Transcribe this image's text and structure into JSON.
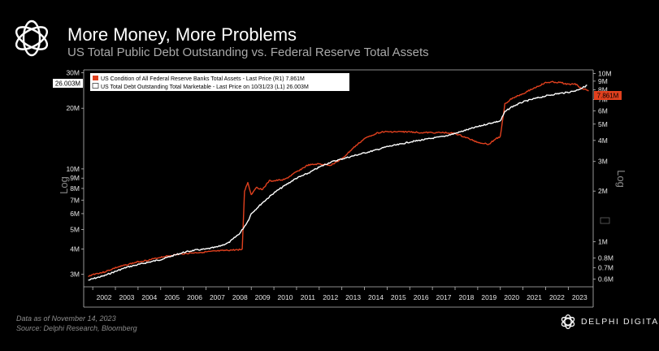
{
  "header": {
    "title": "More Money, More Problems",
    "subtitle": "US Total Public Debt Outstanding vs. Federal Reserve Total Assets"
  },
  "footer": {
    "data_as_of": "Data as of November 14, 2023",
    "source": "Source: Delphi Research, Bloomberg"
  },
  "brand": {
    "name": "DELPHI DIGITAL",
    "icon": "delphi-digital-logo-icon"
  },
  "colors": {
    "background": "#000000",
    "fed_series": "#e0401e",
    "debt_series": "#ffffff",
    "legend_bg": "#ffffff"
  },
  "chart_data": {
    "type": "line",
    "title": "",
    "xlabel": "",
    "ylabel_left": "Log",
    "ylabel_right": "Log",
    "log_scale": true,
    "grid": false,
    "legend_position": "top-left",
    "x_ticks": [
      "2002",
      "2003",
      "2004",
      "2005",
      "2006",
      "2007",
      "2008",
      "2009",
      "2010",
      "2011",
      "2012",
      "2013",
      "2014",
      "2015",
      "2016",
      "2017",
      "2018",
      "2019",
      "2020",
      "2021",
      "2022",
      "2023"
    ],
    "x_range": [
      2001.6,
      2024.1
    ],
    "y_left": {
      "range": [
        2.6,
        31
      ],
      "ticks": [
        "30M",
        "20M",
        "10M",
        "9M",
        "8M",
        "7M",
        "6M",
        "5M",
        "4M",
        "3M"
      ],
      "tick_values": [
        30,
        20,
        10,
        9,
        8,
        7,
        6,
        5,
        4,
        3
      ]
    },
    "y_right": {
      "range": [
        0.54,
        10.5
      ],
      "ticks": [
        "10M",
        "9M",
        "8M",
        "7M",
        "6M",
        "5M",
        "4M",
        "3M",
        "2M",
        "1M",
        "0.8M",
        "0.7M",
        "0.6M"
      ],
      "tick_values": [
        10,
        9,
        8,
        7,
        6,
        5,
        4,
        3,
        2,
        1,
        0.8,
        0.7,
        0.6
      ]
    },
    "last_price_tags": {
      "left": "26.003M",
      "right": "7.861M"
    },
    "series": [
      {
        "name": "US Condition of All Federal Reserve Banks Total Assets - Last Price (R1)  7.861M",
        "axis": "right",
        "color": "#e0401e",
        "x": [
          2001.8,
          2002.0,
          2002.5,
          2003.0,
          2003.5,
          2004.0,
          2004.5,
          2005.0,
          2005.5,
          2006.0,
          2006.5,
          2007.0,
          2007.5,
          2008.0,
          2008.6,
          2008.7,
          2008.85,
          2009.0,
          2009.2,
          2009.5,
          2009.8,
          2010.0,
          2010.5,
          2011.0,
          2011.5,
          2012.0,
          2012.5,
          2013.0,
          2013.5,
          2014.0,
          2014.5,
          2014.8,
          2015.5,
          2016.0,
          2016.5,
          2017.0,
          2017.5,
          2018.0,
          2018.5,
          2019.0,
          2019.5,
          2019.8,
          2020.0,
          2020.2,
          2020.5,
          2021.0,
          2021.5,
          2022.0,
          2022.3,
          2022.7,
          2023.0,
          2023.3,
          2023.5,
          2023.9
        ],
        "values": [
          0.62,
          0.64,
          0.66,
          0.7,
          0.73,
          0.76,
          0.78,
          0.81,
          0.83,
          0.85,
          0.86,
          0.87,
          0.88,
          0.89,
          0.9,
          2.0,
          2.25,
          1.9,
          2.1,
          2.05,
          2.3,
          2.3,
          2.35,
          2.6,
          2.85,
          2.9,
          2.85,
          3.1,
          3.6,
          4.1,
          4.4,
          4.5,
          4.5,
          4.5,
          4.45,
          4.45,
          4.45,
          4.4,
          4.15,
          3.9,
          3.8,
          4.1,
          4.2,
          6.6,
          7.1,
          7.6,
          8.2,
          8.8,
          8.9,
          8.8,
          8.6,
          8.7,
          8.3,
          7.86
        ]
      },
      {
        "name": "US Total Debt Outstanding Total Marketable - Last Price on 10/31/23 (L1)  26.003M",
        "axis": "left",
        "color": "#ffffff",
        "x": [
          2001.8,
          2002.0,
          2002.5,
          2003.0,
          2003.5,
          2004.0,
          2004.5,
          2005.0,
          2005.5,
          2006.0,
          2006.5,
          2007.0,
          2007.5,
          2008.0,
          2008.5,
          2008.85,
          2009.0,
          2009.5,
          2010.0,
          2010.5,
          2011.0,
          2011.5,
          2012.0,
          2012.5,
          2013.0,
          2013.5,
          2014.0,
          2014.5,
          2015.0,
          2015.5,
          2016.0,
          2016.5,
          2017.0,
          2017.5,
          2018.0,
          2018.5,
          2019.0,
          2019.5,
          2020.0,
          2020.2,
          2020.5,
          2021.0,
          2021.5,
          2022.0,
          2022.5,
          2023.0,
          2023.3,
          2023.6,
          2023.83
        ],
        "values": [
          2.8,
          2.85,
          2.95,
          3.1,
          3.25,
          3.35,
          3.45,
          3.55,
          3.7,
          3.85,
          3.95,
          4.0,
          4.1,
          4.3,
          4.8,
          5.5,
          6.0,
          6.8,
          7.6,
          8.3,
          9.0,
          9.5,
          10.2,
          10.8,
          11.2,
          11.6,
          12.0,
          12.4,
          12.9,
          13.2,
          13.6,
          13.9,
          14.2,
          14.5,
          15.0,
          15.6,
          16.2,
          16.8,
          17.3,
          19.2,
          20.3,
          21.5,
          22.3,
          23.0,
          23.6,
          24.0,
          24.4,
          25.2,
          26.0
        ]
      }
    ]
  }
}
